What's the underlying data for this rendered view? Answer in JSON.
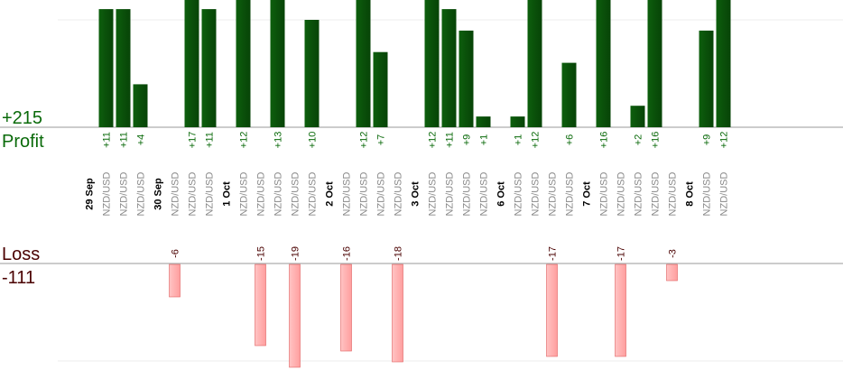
{
  "chart_data": {
    "type": "bar",
    "profit_title": "Profit",
    "profit_total": "+215",
    "loss_title": "Loss",
    "loss_total": "-111",
    "pair": "NZD/USD",
    "days": [
      {
        "label": "29 Sep",
        "trades": [
          11,
          11,
          4
        ]
      },
      {
        "label": "30 Sep",
        "trades": [
          -6,
          17,
          11
        ]
      },
      {
        "label": "1 Oct",
        "trades": [
          12,
          -15,
          13,
          -19,
          10
        ]
      },
      {
        "label": "2 Oct",
        "trades": [
          -16,
          12,
          7,
          -18
        ]
      },
      {
        "label": "3 Oct",
        "trades": [
          12,
          11,
          9,
          1
        ]
      },
      {
        "label": "6 Oct",
        "trades": [
          1,
          12,
          -17,
          6
        ]
      },
      {
        "label": "7 Oct",
        "trades": [
          16,
          -17,
          2,
          16,
          -3
        ]
      },
      {
        "label": "8 Oct",
        "trades": [
          9,
          12
        ]
      }
    ],
    "colors": {
      "profit_bar": "#0a5a0a",
      "profit_bar_light": "#1f7a1f",
      "profit_text": "#0a6a0a",
      "loss_bar": "#ffb0b0",
      "loss_bar_border": "#e06060",
      "loss_text": "#4a0000",
      "date_text": "#000000",
      "pair_text": "#888888"
    }
  }
}
